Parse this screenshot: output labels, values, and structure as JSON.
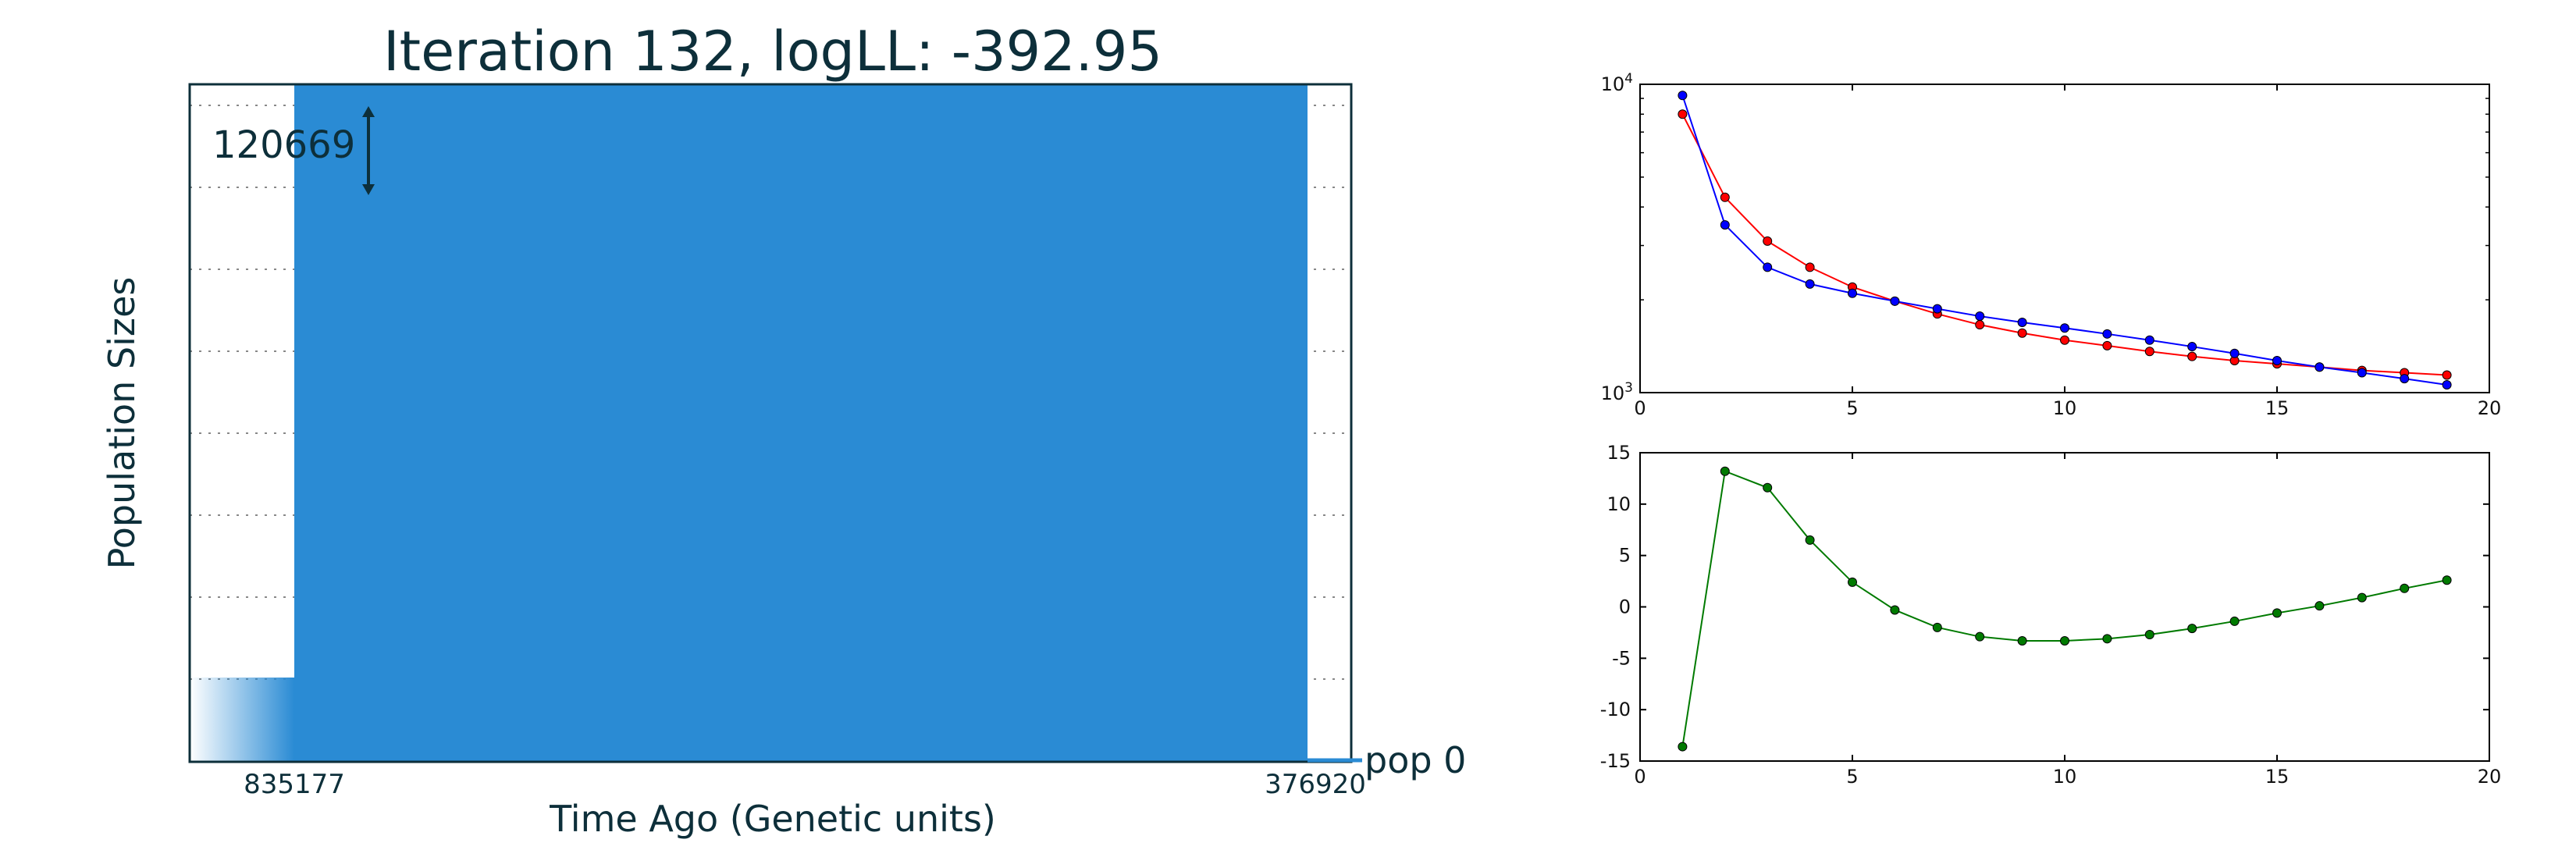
{
  "chart_data": [
    {
      "type": "bar",
      "name": "population-sizes-panel",
      "title": "Iteration 132, logLL:    -392.95",
      "xlabel": "Time Ago (Genetic units)",
      "ylabel": "Population Sizes",
      "x_tick_labels": [
        "835177",
        "376920"
      ],
      "population_label": "pop 0",
      "scale_value_label": "120669",
      "grid": true,
      "colors": {
        "bar": "#2a8bd4",
        "frame": "#0d2f3a",
        "grid": "#888888"
      }
    },
    {
      "type": "line",
      "name": "log-scale-panel",
      "y_scale": "log",
      "xlim": [
        0,
        20
      ],
      "ylim": [
        1000,
        10000
      ],
      "x_tick_labels": [
        "0",
        "5",
        "10",
        "15",
        "20"
      ],
      "y_tick_labels": [
        {
          "base": "10",
          "exp": "4"
        },
        {
          "base": "10",
          "exp": "3"
        }
      ],
      "series": [
        {
          "name": "red",
          "color": "#ff0000",
          "x": [
            1,
            2,
            3,
            4,
            5,
            6,
            7,
            8,
            9,
            10,
            11,
            12,
            13,
            14,
            15,
            16,
            17,
            18,
            19
          ],
          "y": [
            8000,
            4300,
            3100,
            2550,
            2200,
            1980,
            1800,
            1660,
            1560,
            1480,
            1420,
            1360,
            1310,
            1270,
            1240,
            1210,
            1180,
            1160,
            1140
          ]
        },
        {
          "name": "blue",
          "color": "#0000ff",
          "x": [
            1,
            2,
            3,
            4,
            5,
            6,
            7,
            8,
            9,
            10,
            11,
            12,
            13,
            14,
            15,
            16,
            17,
            18,
            19
          ],
          "y": [
            9200,
            3500,
            2550,
            2250,
            2100,
            1980,
            1870,
            1770,
            1690,
            1620,
            1550,
            1480,
            1410,
            1340,
            1270,
            1210,
            1160,
            1110,
            1060
          ]
        }
      ]
    },
    {
      "type": "line",
      "name": "difference-panel",
      "xlim": [
        0,
        20
      ],
      "ylim": [
        -15,
        15
      ],
      "x_tick_labels": [
        "0",
        "5",
        "10",
        "15",
        "20"
      ],
      "y_tick_labels": [
        "15",
        "10",
        "5",
        "0",
        "-5",
        "-10",
        "-15"
      ],
      "y_tick_values": [
        15,
        10,
        5,
        0,
        -5,
        -10,
        -15
      ],
      "series": [
        {
          "name": "green",
          "color": "#007a00",
          "x": [
            1,
            2,
            3,
            4,
            5,
            6,
            7,
            8,
            9,
            10,
            11,
            12,
            13,
            14,
            15,
            16,
            17,
            18,
            19
          ],
          "y": [
            -13.6,
            13.2,
            11.6,
            6.5,
            2.4,
            -0.3,
            -2.0,
            -2.9,
            -3.3,
            -3.3,
            -3.1,
            -2.7,
            -2.1,
            -1.4,
            -0.6,
            0.1,
            0.9,
            1.8,
            2.6
          ]
        }
      ]
    }
  ]
}
